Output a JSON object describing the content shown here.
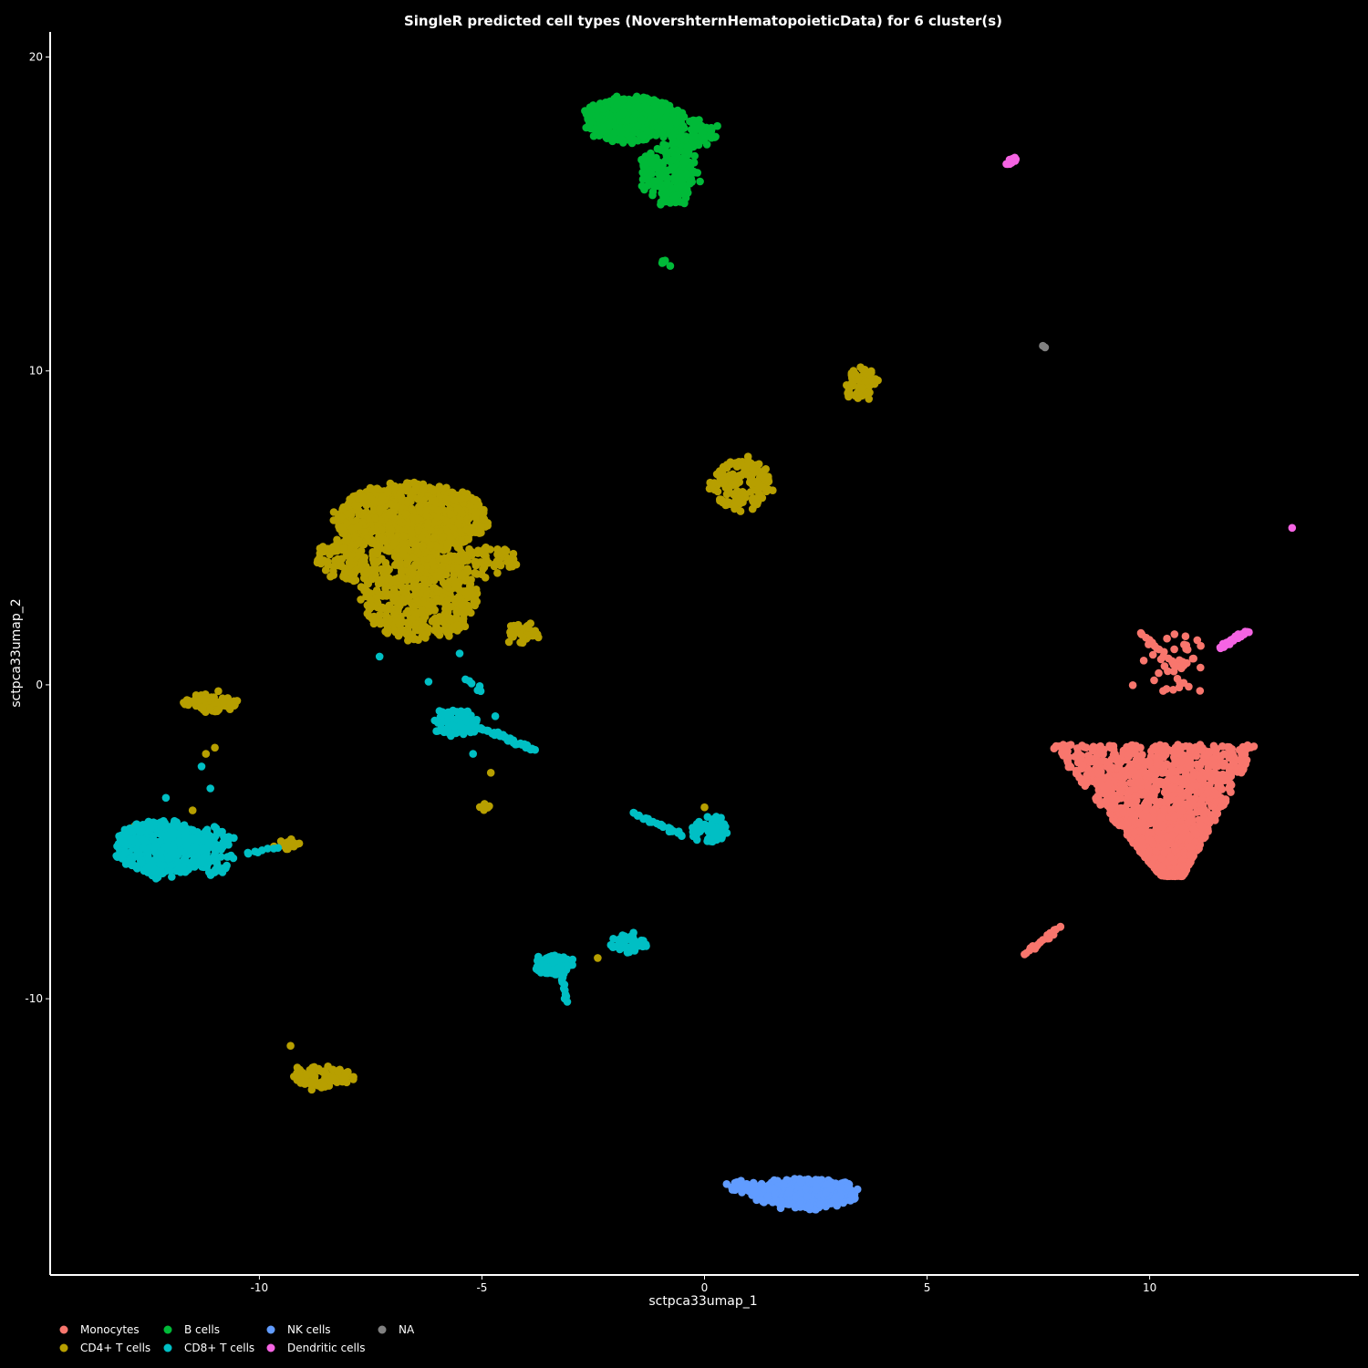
{
  "chart_data": {
    "type": "scatter",
    "title": "SingleR predicted cell types (NovershternHematopoieticData) for 6 cluster(s)",
    "xlabel": "sctpca33umap_1",
    "ylabel": "sctpca33umap_2",
    "xlim": [
      -14.7,
      14.7
    ],
    "ylim": [
      -18.8,
      20.8
    ],
    "xticks": [
      -10,
      -5,
      0,
      5,
      10
    ],
    "yticks": [
      -10,
      0,
      10,
      20
    ],
    "xtick_labels": [
      "-10",
      "-5",
      "0",
      "5",
      "10"
    ],
    "ytick_labels": [
      "-10",
      "0",
      "10",
      "20"
    ],
    "background": "#000000",
    "grid": false,
    "legend_position": "bottom-left",
    "series": [
      {
        "name": "Monocytes",
        "color": "#F8766D",
        "clusters": [
          {
            "cx": 10.1,
            "cy": -4.0,
            "rx": 2.1,
            "ry": 2.1,
            "n": 1500,
            "shape": "triangle-down"
          },
          {
            "cx": 10.5,
            "cy": 0.8,
            "rx": 0.6,
            "ry": 1.0,
            "n": 40,
            "shape": "streak"
          }
        ],
        "lines": [
          {
            "from": [
              9.8,
              1.7
            ],
            "to": [
              10.6,
              0.6
            ],
            "n": 14
          },
          {
            "from": [
              7.2,
              -8.6
            ],
            "to": [
              8.0,
              -7.7
            ],
            "n": 20
          }
        ]
      },
      {
        "name": "CD4+ T cells",
        "color": "#B79F00",
        "clusters": [
          {
            "cx": -6.6,
            "cy": 5.3,
            "rx": 1.7,
            "ry": 1.1,
            "n": 900,
            "shape": "ellipse"
          },
          {
            "cx": -6.4,
            "cy": 2.8,
            "rx": 1.3,
            "ry": 1.4,
            "n": 500,
            "shape": "ellipse"
          },
          {
            "cx": -8.0,
            "cy": 4.0,
            "rx": 0.7,
            "ry": 0.7,
            "n": 120,
            "shape": "ellipse"
          },
          {
            "cx": -5.0,
            "cy": 3.9,
            "rx": 0.8,
            "ry": 0.5,
            "n": 80,
            "shape": "ellipse"
          },
          {
            "cx": -4.1,
            "cy": 1.7,
            "rx": 0.4,
            "ry": 0.3,
            "n": 40,
            "shape": "ellipse"
          },
          {
            "cx": -11.1,
            "cy": -0.6,
            "rx": 0.6,
            "ry": 0.3,
            "n": 70,
            "shape": "ellipse"
          },
          {
            "cx": 0.8,
            "cy": 6.4,
            "rx": 0.7,
            "ry": 0.8,
            "n": 140,
            "shape": "ellipse"
          },
          {
            "cx": 3.5,
            "cy": 9.6,
            "rx": 0.4,
            "ry": 0.5,
            "n": 70,
            "shape": "ellipse"
          },
          {
            "cx": -8.6,
            "cy": -12.5,
            "rx": 0.7,
            "ry": 0.35,
            "n": 90,
            "shape": "ellipse"
          },
          {
            "cx": -4.9,
            "cy": -3.9,
            "rx": 0.15,
            "ry": 0.1,
            "n": 8,
            "shape": "ellipse"
          },
          {
            "cx": -9.4,
            "cy": -5.1,
            "rx": 0.5,
            "ry": 0.15,
            "n": 15,
            "shape": "ellipse"
          }
        ],
        "points": [
          [
            -12.8,
            -4.5
          ],
          [
            -11.5,
            -4.0
          ],
          [
            -2.4,
            -8.7
          ],
          [
            -1.8,
            17.5
          ],
          [
            0.0,
            -3.9
          ],
          [
            -9.3,
            -11.5
          ],
          [
            -11.2,
            -2.2
          ],
          [
            -11.0,
            -2.0
          ],
          [
            -4.8,
            -2.8
          ]
        ]
      },
      {
        "name": "B cells",
        "color": "#00BA38",
        "clusters": [
          {
            "cx": -1.6,
            "cy": 18.0,
            "rx": 1.1,
            "ry": 0.7,
            "n": 500,
            "shape": "ellipse"
          },
          {
            "cx": -0.8,
            "cy": 16.3,
            "rx": 0.6,
            "ry": 1.0,
            "n": 200,
            "shape": "ellipse"
          },
          {
            "cx": -0.3,
            "cy": 17.6,
            "rx": 0.5,
            "ry": 0.4,
            "n": 80,
            "shape": "ellipse"
          },
          {
            "cx": -0.9,
            "cy": 13.5,
            "rx": 0.05,
            "ry": 0.1,
            "n": 5,
            "shape": "ellipse"
          }
        ]
      },
      {
        "name": "CD8+ T cells",
        "color": "#00BFC4",
        "clusters": [
          {
            "cx": -12.2,
            "cy": -5.2,
            "rx": 1.0,
            "ry": 0.9,
            "n": 450,
            "shape": "ellipse"
          },
          {
            "cx": -11.0,
            "cy": -5.3,
            "rx": 0.5,
            "ry": 0.8,
            "n": 90,
            "shape": "ellipse"
          },
          {
            "cx": -5.6,
            "cy": -1.2,
            "rx": 0.5,
            "ry": 0.4,
            "n": 90,
            "shape": "ellipse"
          },
          {
            "cx": 0.1,
            "cy": -4.6,
            "rx": 0.4,
            "ry": 0.4,
            "n": 70,
            "shape": "ellipse"
          },
          {
            "cx": -3.4,
            "cy": -8.9,
            "rx": 0.4,
            "ry": 0.35,
            "n": 70,
            "shape": "ellipse"
          },
          {
            "cx": -1.7,
            "cy": -8.2,
            "rx": 0.4,
            "ry": 0.3,
            "n": 50,
            "shape": "ellipse"
          }
        ],
        "lines": [
          {
            "from": [
              -5.2,
              -1.3
            ],
            "to": [
              -3.8,
              -2.1
            ],
            "n": 40
          },
          {
            "from": [
              -1.6,
              -4.1
            ],
            "to": [
              -0.5,
              -4.8
            ],
            "n": 25
          },
          {
            "from": [
              -3.2,
              -9.3
            ],
            "to": [
              -3.1,
              -10.1
            ],
            "n": 10
          },
          {
            "from": [
              -10.3,
              -5.4
            ],
            "to": [
              -9.6,
              -5.2
            ],
            "n": 8
          },
          {
            "from": [
              -5.0,
              -0.2
            ],
            "to": [
              -5.4,
              0.2
            ],
            "n": 6
          }
        ],
        "points": [
          [
            -11.1,
            -3.3
          ],
          [
            -12.1,
            -3.6
          ],
          [
            -11.3,
            -2.6
          ],
          [
            -6.2,
            0.1
          ],
          [
            -7.3,
            0.9
          ],
          [
            -5.5,
            1.0
          ],
          [
            -5.2,
            -2.2
          ],
          [
            -4.7,
            -1.0
          ]
        ]
      },
      {
        "name": "NK cells",
        "color": "#619CFF",
        "clusters": [
          {
            "cx": 2.3,
            "cy": -16.2,
            "rx": 1.2,
            "ry": 0.45,
            "n": 380,
            "shape": "ellipse"
          },
          {
            "cx": 0.9,
            "cy": -16.0,
            "rx": 0.4,
            "ry": 0.2,
            "n": 40,
            "shape": "ellipse"
          }
        ]
      },
      {
        "name": "Dendritic cells",
        "color": "#F564E3",
        "clusters": [],
        "lines": [
          {
            "from": [
              11.6,
              1.2
            ],
            "to": [
              12.2,
              1.7
            ],
            "n": 40
          },
          {
            "from": [
              6.8,
              16.6
            ],
            "to": [
              7.0,
              16.8
            ],
            "n": 12
          }
        ],
        "points": [
          [
            13.2,
            5.0
          ]
        ]
      },
      {
        "name": "NA",
        "color": "#808080",
        "clusters": [],
        "points": [
          [
            7.6,
            10.8
          ],
          [
            7.65,
            10.75
          ]
        ]
      }
    ]
  }
}
